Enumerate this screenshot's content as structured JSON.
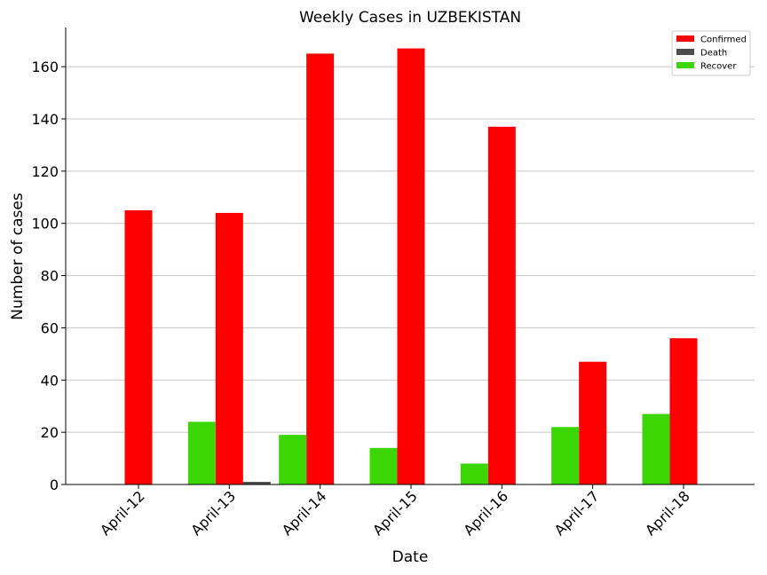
{
  "chart_data": {
    "type": "bar",
    "title": "Weekly Cases in UZBEKISTAN",
    "xlabel": "Date",
    "ylabel": "Number of cases",
    "categories": [
      "April-12",
      "April-13",
      "April-14",
      "April-15",
      "April-16",
      "April-17",
      "April-18"
    ],
    "series": [
      {
        "name": "Confirmed",
        "color": "#ff0000",
        "values": [
          105,
          104,
          165,
          167,
          137,
          47,
          56
        ]
      },
      {
        "name": "Death",
        "color": "#4d4d4d",
        "values": [
          0,
          1,
          0,
          0,
          0,
          0,
          0
        ]
      },
      {
        "name": "Recover",
        "color": "#3dd605",
        "values": [
          0,
          24,
          19,
          14,
          8,
          22,
          27
        ]
      }
    ],
    "ylim": [
      0,
      175
    ],
    "yticks": [
      0,
      20,
      40,
      60,
      80,
      100,
      120,
      140,
      160
    ],
    "grid": "horizontal",
    "legend_position": "top-right"
  }
}
